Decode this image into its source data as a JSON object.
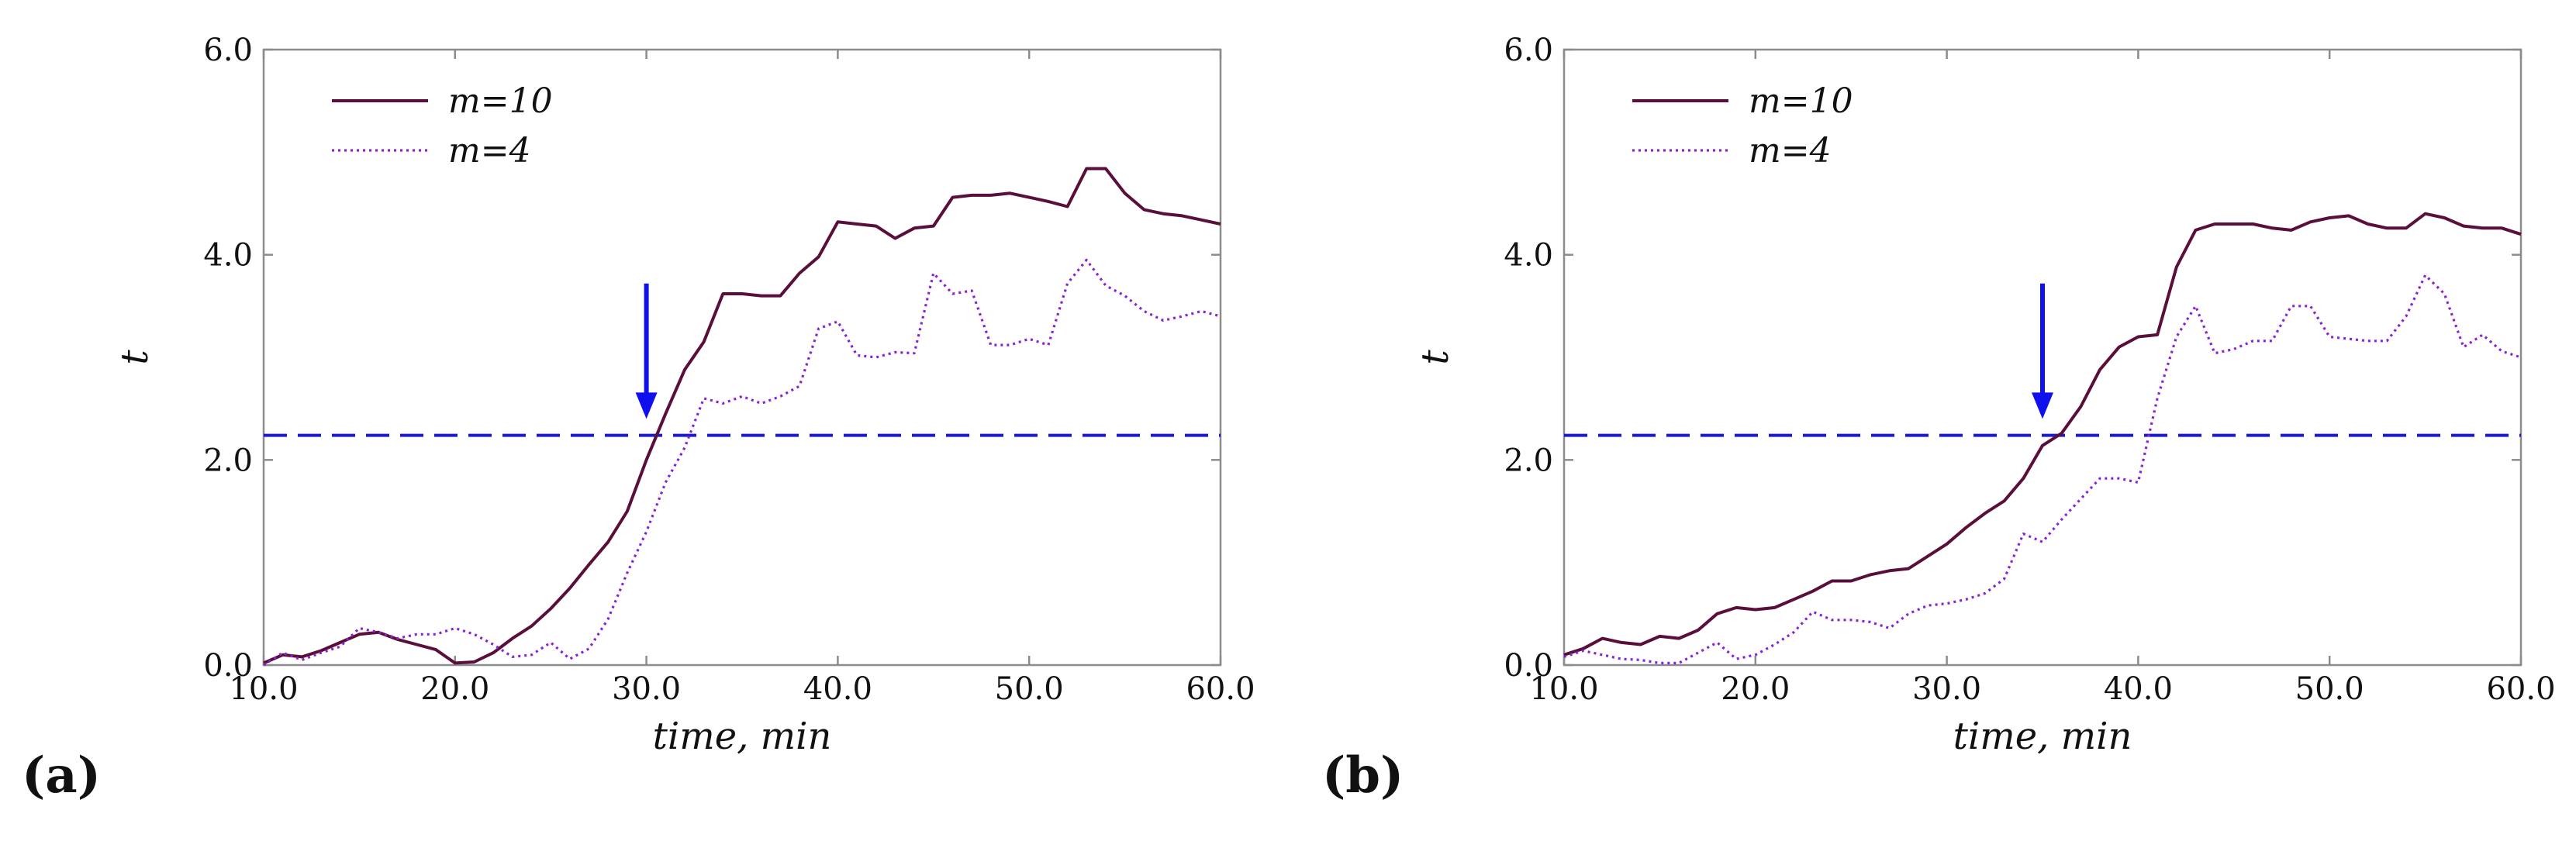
{
  "colors": {
    "m10": "#5a0f3a",
    "m4": "#8a22d0",
    "threshold": "#1a1acc",
    "arrow": "#1010ee",
    "frame": "#8c8c8c"
  },
  "chart_data": [
    {
      "type": "line",
      "panel_label": "(a)",
      "xlabel": "time, min",
      "ylabel": "t",
      "xlim": [
        10,
        60
      ],
      "ylim": [
        0,
        6
      ],
      "x_ticks": [
        "10.0",
        "20.0",
        "30.0",
        "40.0",
        "50.0",
        "60.0"
      ],
      "y_ticks": [
        "0.0",
        "2.0",
        "4.0",
        "6.0"
      ],
      "legend": {
        "location": "top-left",
        "entries": [
          "m=10",
          "m=4"
        ]
      },
      "threshold": 2.24,
      "arrow_x": 30,
      "series": [
        {
          "name": "m=10",
          "style": "solid",
          "x": [
            10,
            11,
            12,
            13,
            14,
            15,
            16,
            17,
            18,
            19,
            20,
            21,
            22,
            23,
            24,
            25,
            26,
            27,
            28,
            29,
            30,
            31,
            32,
            33,
            34,
            35,
            36,
            37,
            38,
            39,
            40,
            41,
            42,
            43,
            44,
            45,
            46,
            47,
            48,
            49,
            50,
            51,
            52,
            53,
            54,
            55,
            56,
            57,
            58,
            59,
            60
          ],
          "y": [
            0.02,
            0.1,
            0.08,
            0.14,
            0.22,
            0.3,
            0.32,
            0.25,
            0.2,
            0.15,
            0.02,
            0.03,
            0.12,
            0.26,
            0.38,
            0.55,
            0.75,
            0.98,
            1.2,
            1.5,
            2.0,
            2.45,
            2.88,
            3.15,
            3.62,
            3.62,
            3.6,
            3.6,
            3.82,
            3.98,
            4.32,
            4.3,
            4.28,
            4.16,
            4.26,
            4.28,
            4.56,
            4.58,
            4.58,
            4.6,
            4.56,
            4.52,
            4.47,
            4.84,
            4.84,
            4.6,
            4.44,
            4.4,
            4.38,
            4.34,
            4.3
          ]
        },
        {
          "name": "m=4",
          "style": "dotted",
          "x": [
            10,
            11,
            12,
            13,
            14,
            15,
            16,
            17,
            18,
            19,
            20,
            21,
            22,
            23,
            24,
            25,
            26,
            27,
            28,
            29,
            30,
            31,
            32,
            33,
            34,
            35,
            36,
            37,
            38,
            39,
            40,
            41,
            42,
            43,
            44,
            45,
            46,
            47,
            48,
            49,
            50,
            51,
            52,
            53,
            54,
            55,
            56,
            57,
            58,
            59,
            60
          ],
          "y": [
            0.0,
            0.12,
            0.05,
            0.12,
            0.18,
            0.36,
            0.32,
            0.26,
            0.3,
            0.3,
            0.36,
            0.3,
            0.2,
            0.08,
            0.1,
            0.22,
            0.06,
            0.16,
            0.45,
            0.9,
            1.3,
            1.78,
            2.12,
            2.6,
            2.55,
            2.62,
            2.55,
            2.62,
            2.72,
            3.28,
            3.35,
            3.02,
            3.0,
            3.05,
            3.04,
            3.82,
            3.62,
            3.65,
            3.12,
            3.12,
            3.18,
            3.12,
            3.72,
            3.95,
            3.7,
            3.6,
            3.45,
            3.36,
            3.4,
            3.45,
            3.4
          ]
        }
      ]
    },
    {
      "type": "line",
      "panel_label": "(b)",
      "xlabel": "time, min",
      "ylabel": "t",
      "xlim": [
        10,
        60
      ],
      "ylim": [
        0,
        6
      ],
      "x_ticks": [
        "10.0",
        "20.0",
        "30.0",
        "40.0",
        "50.0",
        "60.0"
      ],
      "y_ticks": [
        "0.0",
        "2.0",
        "4.0",
        "6.0"
      ],
      "legend": {
        "location": "top-left",
        "entries": [
          "m=10",
          "m=4"
        ]
      },
      "threshold": 2.24,
      "arrow_x": 35,
      "series": [
        {
          "name": "m=10",
          "style": "solid",
          "x": [
            10,
            11,
            12,
            13,
            14,
            15,
            16,
            17,
            18,
            19,
            20,
            21,
            22,
            23,
            24,
            25,
            26,
            27,
            28,
            29,
            30,
            31,
            32,
            33,
            34,
            35,
            36,
            37,
            38,
            39,
            40,
            41,
            42,
            43,
            44,
            45,
            46,
            47,
            48,
            49,
            50,
            51,
            52,
            53,
            54,
            55,
            56,
            57,
            58,
            59,
            60
          ],
          "y": [
            0.1,
            0.16,
            0.26,
            0.22,
            0.2,
            0.28,
            0.26,
            0.34,
            0.5,
            0.56,
            0.54,
            0.56,
            0.64,
            0.72,
            0.82,
            0.82,
            0.88,
            0.92,
            0.94,
            1.06,
            1.18,
            1.34,
            1.48,
            1.6,
            1.82,
            2.14,
            2.26,
            2.52,
            2.88,
            3.1,
            3.2,
            3.22,
            3.88,
            4.24,
            4.3,
            4.3,
            4.3,
            4.26,
            4.24,
            4.32,
            4.36,
            4.38,
            4.3,
            4.26,
            4.26,
            4.4,
            4.36,
            4.28,
            4.26,
            4.26,
            4.2
          ]
        },
        {
          "name": "m=4",
          "style": "dotted",
          "x": [
            10,
            11,
            12,
            13,
            14,
            15,
            16,
            17,
            18,
            19,
            20,
            21,
            22,
            23,
            24,
            25,
            26,
            27,
            28,
            29,
            30,
            31,
            32,
            33,
            34,
            35,
            36,
            37,
            38,
            39,
            40,
            41,
            42,
            43,
            44,
            45,
            46,
            47,
            48,
            49,
            50,
            51,
            52,
            53,
            54,
            55,
            56,
            57,
            58,
            59,
            60
          ],
          "y": [
            0.08,
            0.14,
            0.1,
            0.06,
            0.05,
            0.02,
            0.02,
            0.12,
            0.22,
            0.06,
            0.1,
            0.2,
            0.32,
            0.52,
            0.44,
            0.44,
            0.42,
            0.36,
            0.5,
            0.58,
            0.6,
            0.64,
            0.7,
            0.84,
            1.28,
            1.2,
            1.42,
            1.62,
            1.82,
            1.82,
            1.78,
            2.6,
            3.2,
            3.5,
            3.04,
            3.08,
            3.16,
            3.16,
            3.5,
            3.5,
            3.2,
            3.18,
            3.16,
            3.16,
            3.4,
            3.8,
            3.62,
            3.1,
            3.22,
            3.06,
            3.0
          ]
        }
      ]
    }
  ]
}
